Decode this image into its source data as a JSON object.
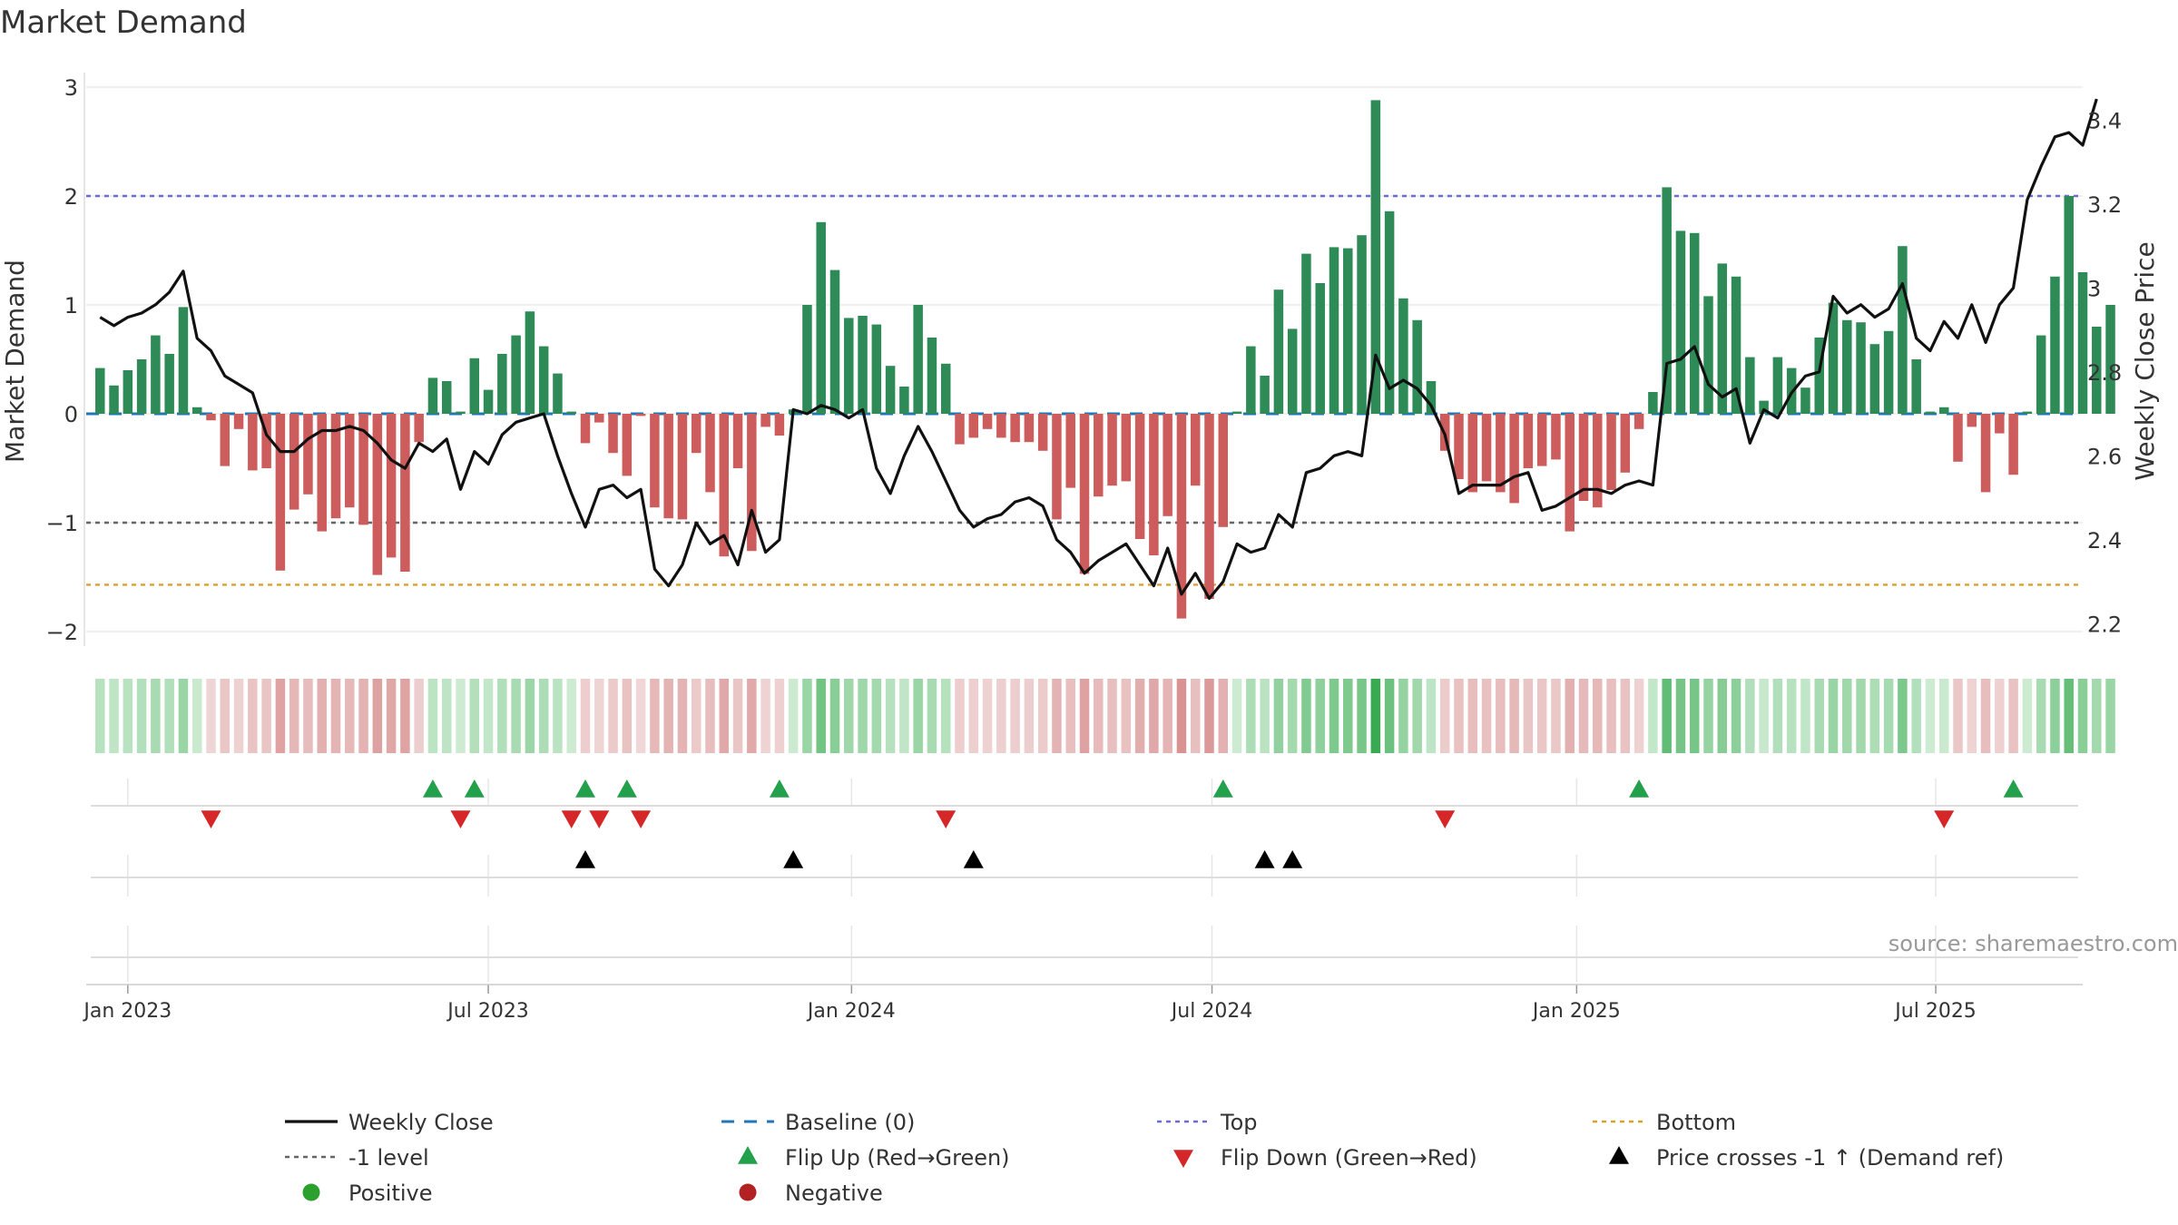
{
  "chart_data": {
    "type": "bar",
    "title": "Market Demand",
    "ylabel": "Market Demand",
    "y2label": "Weekly Close Price",
    "ylim": [
      -2.2,
      3.1
    ],
    "y2lim": [
      2.18,
      3.48
    ],
    "yticks": [
      3,
      2,
      1,
      0,
      -1,
      -2
    ],
    "yticklabels": [
      "3",
      "2",
      "1",
      "0",
      "−1",
      "−2"
    ],
    "y2ticks": [
      3.4,
      3.2,
      3.0,
      2.8,
      2.6,
      2.4,
      2.2
    ],
    "y2ticklabels": [
      "3.4",
      "3.2",
      "3",
      "2.8",
      "2.6",
      "2.4",
      "2.2"
    ],
    "x_start_week": -1,
    "x_range_weeks": [
      -2.0,
      142.0
    ],
    "xticks": [
      {
        "label": "Jan 2023",
        "week": 1.0
      },
      {
        "label": "Jul 2023",
        "week": 27.0
      },
      {
        "label": "Jan 2024",
        "week": 53.2
      },
      {
        "label": "Jul 2024",
        "week": 79.2
      },
      {
        "label": "Jan 2025",
        "week": 105.5
      },
      {
        "label": "Jul 2025",
        "week": 131.4
      }
    ],
    "reference_lines": [
      {
        "name": "Top",
        "value": 2.0
      },
      {
        "name": "-1 level",
        "value": -1.0
      },
      {
        "name": "Bottom",
        "value": -1.57
      },
      {
        "name": "Baseline (0)",
        "value": 0
      }
    ],
    "demand": [
      0.42,
      0.26,
      0.4,
      0.5,
      0.72,
      0.55,
      0.98,
      0.06,
      -0.06,
      -0.48,
      -0.14,
      -0.52,
      -0.5,
      -1.44,
      -0.88,
      -0.74,
      -1.08,
      -0.96,
      -0.86,
      -1.02,
      -1.48,
      -1.32,
      -1.45,
      -0.26,
      0.33,
      0.3,
      0.02,
      0.51,
      0.22,
      0.55,
      0.72,
      0.94,
      0.62,
      0.37,
      0.02,
      -0.27,
      -0.08,
      -0.36,
      -0.57,
      -0.02,
      -0.86,
      -0.96,
      -0.97,
      -0.36,
      -0.72,
      -1.31,
      -0.5,
      -1.26,
      -0.12,
      -0.2,
      0.04,
      1.0,
      1.76,
      1.32,
      0.88,
      0.9,
      0.82,
      0.44,
      0.25,
      1.0,
      0.7,
      0.46,
      -0.28,
      -0.22,
      -0.14,
      -0.22,
      -0.26,
      -0.26,
      -0.34,
      -0.97,
      -0.68,
      -1.47,
      -0.76,
      -0.66,
      -0.62,
      -1.15,
      -1.3,
      -0.94,
      -1.88,
      -0.66,
      -1.7,
      -1.04,
      0.02,
      0.62,
      0.35,
      1.14,
      0.78,
      1.47,
      1.2,
      1.53,
      1.52,
      1.64,
      2.88,
      1.86,
      1.06,
      0.86,
      0.3,
      -0.34,
      -0.6,
      -0.72,
      -0.62,
      -0.72,
      -0.82,
      -0.5,
      -0.48,
      -0.42,
      -1.08,
      -0.8,
      -0.86,
      -0.7,
      -0.54,
      -0.14,
      0.2,
      2.08,
      1.68,
      1.66,
      1.08,
      1.38,
      1.26,
      0.52,
      0.12,
      0.52,
      0.42,
      0.24,
      0.7,
      1.02,
      0.86,
      0.84,
      0.64,
      0.76,
      1.54,
      0.5,
      0.02,
      0.06,
      -0.44,
      -0.12,
      -0.72,
      -0.18,
      -0.56,
      0.02,
      0.72,
      1.26,
      2.0,
      1.3,
      0.8,
      1.0
    ],
    "weekly_close": [
      2.93,
      2.91,
      2.93,
      2.94,
      2.96,
      2.99,
      3.04,
      2.88,
      2.85,
      2.79,
      2.77,
      2.75,
      2.65,
      2.61,
      2.61,
      2.64,
      2.66,
      2.66,
      2.67,
      2.66,
      2.63,
      2.59,
      2.57,
      2.63,
      2.61,
      2.64,
      2.52,
      2.61,
      2.58,
      2.65,
      2.68,
      2.69,
      2.7,
      2.6,
      2.51,
      2.43,
      2.52,
      2.53,
      2.5,
      2.52,
      2.33,
      2.29,
      2.34,
      2.44,
      2.39,
      2.41,
      2.34,
      2.47,
      2.37,
      2.4,
      2.71,
      2.7,
      2.72,
      2.71,
      2.69,
      2.71,
      2.57,
      2.51,
      2.6,
      2.67,
      2.61,
      2.54,
      2.47,
      2.43,
      2.45,
      2.46,
      2.49,
      2.5,
      2.48,
      2.4,
      2.37,
      2.32,
      2.35,
      2.37,
      2.39,
      2.34,
      2.29,
      2.38,
      2.27,
      2.32,
      2.26,
      2.3,
      2.39,
      2.37,
      2.38,
      2.46,
      2.43,
      2.56,
      2.57,
      2.6,
      2.61,
      2.6,
      2.84,
      2.76,
      2.78,
      2.76,
      2.72,
      2.65,
      2.51,
      2.53,
      2.53,
      2.53,
      2.55,
      2.56,
      2.47,
      2.48,
      2.5,
      2.52,
      2.52,
      2.51,
      2.53,
      2.54,
      2.53,
      2.82,
      2.83,
      2.86,
      2.77,
      2.74,
      2.76,
      2.63,
      2.71,
      2.69,
      2.75,
      2.79,
      2.8,
      2.98,
      2.94,
      2.96,
      2.93,
      2.95,
      3.01,
      2.88,
      2.85,
      2.92,
      2.88,
      2.96,
      2.87,
      2.96,
      3.0,
      3.21,
      3.29,
      3.36,
      3.37,
      3.34,
      3.45
    ],
    "flip_up_weeks": [
      23,
      26,
      34,
      37,
      48,
      80,
      110,
      137
    ],
    "flip_down_weeks": [
      7,
      25,
      33,
      35,
      38,
      60,
      96,
      132
    ],
    "price_cross_weeks": [
      34,
      49,
      62,
      83,
      85
    ],
    "source": "source: sharemaestro.com",
    "legend": [
      {
        "label": "Weekly Close",
        "marker": "line-solid",
        "color": "#111111"
      },
      {
        "label": "Baseline (0)",
        "marker": "line-dashed",
        "color": "#1f77b4"
      },
      {
        "label": "Top",
        "marker": "line-dotted",
        "color": "#6b6bd6"
      },
      {
        "label": "Bottom",
        "marker": "line-dotted",
        "color": "#d9a030"
      },
      {
        "label": "-1 level",
        "marker": "line-dotted",
        "color": "#666666"
      },
      {
        "label": "Flip Up (Red→Green)",
        "marker": "triangle-up",
        "color": "#22a04b"
      },
      {
        "label": "Flip Down (Green→Red)",
        "marker": "triangle-down",
        "color": "#d62728"
      },
      {
        "label": "Price crosses -1 ↑ (Demand ref)",
        "marker": "triangle-up",
        "color": "#000000"
      },
      {
        "label": "Positive",
        "marker": "circle",
        "color": "#2ca02c"
      },
      {
        "label": "Negative",
        "marker": "circle",
        "color": "#b22222"
      }
    ],
    "colors": {
      "positive": "#2e8b57",
      "negative": "#cd5c5c",
      "price": "#111111",
      "baseline": "#1f77b4",
      "top": "#6b6bd6",
      "minus_one": "#666666",
      "bottom": "#d9a030",
      "flip_up": "#22a04b",
      "flip_down": "#d62728",
      "cross": "#000000"
    }
  }
}
